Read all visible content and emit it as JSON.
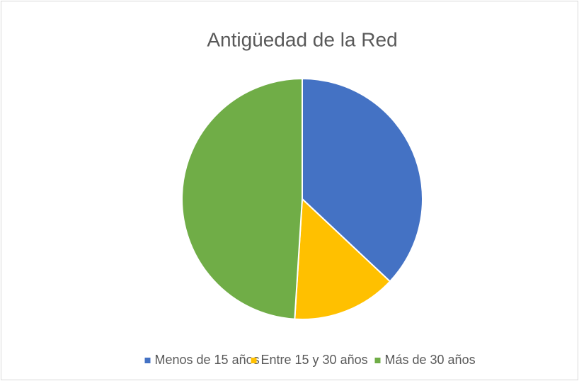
{
  "chart_data": {
    "type": "pie",
    "title": "Antigüedad de la Red",
    "categories": [
      "Menos de 15 años",
      "Entre 15 y 30 años",
      "Más de 30 años"
    ],
    "values": [
      37,
      14,
      49
    ],
    "colors": [
      "#4472c4",
      "#ffc000",
      "#70ad47"
    ],
    "legend": "bottom"
  }
}
